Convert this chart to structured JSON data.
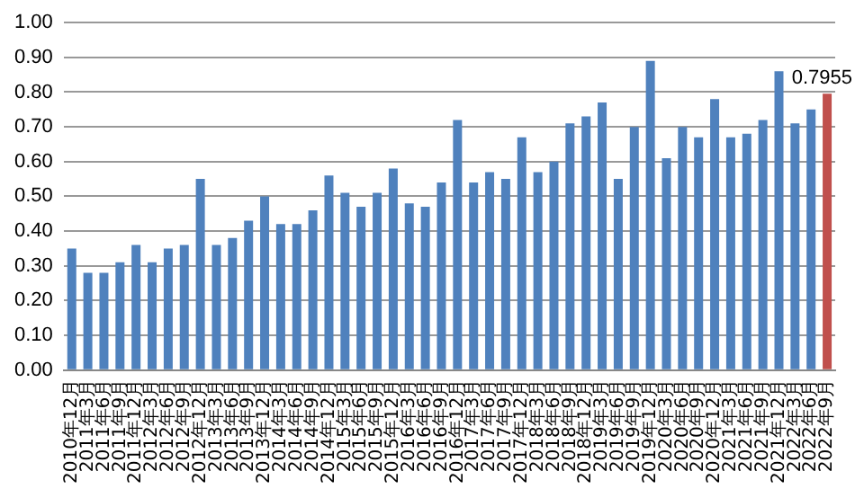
{
  "chart_data": {
    "type": "bar",
    "categories": [
      "2010年12月",
      "2011年3月",
      "2011年6月",
      "2011年9月",
      "2011年12月",
      "2012年3月",
      "2012年6月",
      "2012年9月",
      "2012年12月",
      "2013年3月",
      "2013年6月",
      "2013年9月",
      "2013年12月",
      "2014年3月",
      "2014年6月",
      "2014年9月",
      "2014年12月",
      "2015年3月",
      "2015年6月",
      "2015年9月",
      "2015年12月",
      "2016年3月",
      "2016年6月",
      "2016年9月",
      "2016年12月",
      "2017年3月",
      "2017年6月",
      "2017年9月",
      "2017年12月",
      "2018年3月",
      "2018年6月",
      "2018年9月",
      "2018年12月",
      "2019年3月",
      "2019年6月",
      "2019年9月",
      "2019年12月",
      "2020年3月",
      "2020年6月",
      "2020年9月",
      "2020年12月",
      "2021年3月",
      "2021年6月",
      "2021年9月",
      "2021年12月",
      "2022年3月",
      "2022年6月",
      "2022年9月"
    ],
    "values": [
      0.35,
      0.28,
      0.28,
      0.31,
      0.36,
      0.31,
      0.35,
      0.36,
      0.55,
      0.36,
      0.38,
      0.43,
      0.5,
      0.42,
      0.42,
      0.46,
      0.56,
      0.51,
      0.47,
      0.51,
      0.58,
      0.48,
      0.47,
      0.54,
      0.72,
      0.54,
      0.57,
      0.55,
      0.67,
      0.57,
      0.6,
      0.71,
      0.73,
      0.77,
      0.55,
      0.7,
      0.89,
      0.61,
      0.7,
      0.67,
      0.78,
      0.67,
      0.68,
      0.72,
      0.86,
      0.71,
      0.75,
      0.7955
    ],
    "colors": [
      "#4f81bd",
      "#4f81bd",
      "#4f81bd",
      "#4f81bd",
      "#4f81bd",
      "#4f81bd",
      "#4f81bd",
      "#4f81bd",
      "#4f81bd",
      "#4f81bd",
      "#4f81bd",
      "#4f81bd",
      "#4f81bd",
      "#4f81bd",
      "#4f81bd",
      "#4f81bd",
      "#4f81bd",
      "#4f81bd",
      "#4f81bd",
      "#4f81bd",
      "#4f81bd",
      "#4f81bd",
      "#4f81bd",
      "#4f81bd",
      "#4f81bd",
      "#4f81bd",
      "#4f81bd",
      "#4f81bd",
      "#4f81bd",
      "#4f81bd",
      "#4f81bd",
      "#4f81bd",
      "#4f81bd",
      "#4f81bd",
      "#4f81bd",
      "#4f81bd",
      "#4f81bd",
      "#4f81bd",
      "#4f81bd",
      "#4f81bd",
      "#4f81bd",
      "#4f81bd",
      "#4f81bd",
      "#4f81bd",
      "#4f81bd",
      "#4f81bd",
      "#4f81bd",
      "#c0504d"
    ],
    "value_labels": [
      null,
      null,
      null,
      null,
      null,
      null,
      null,
      null,
      null,
      null,
      null,
      null,
      null,
      null,
      null,
      null,
      null,
      null,
      null,
      null,
      null,
      null,
      null,
      null,
      null,
      null,
      null,
      null,
      null,
      null,
      null,
      null,
      null,
      null,
      null,
      null,
      null,
      null,
      null,
      null,
      null,
      null,
      null,
      null,
      null,
      null,
      null,
      "0.7955"
    ],
    "ylim": [
      0,
      1
    ],
    "yticks": [
      {
        "value": 0,
        "label": "0.00"
      },
      {
        "value": 0.1,
        "label": "0.10"
      },
      {
        "value": 0.2,
        "label": "0.20"
      },
      {
        "value": 0.3,
        "label": "0.30"
      },
      {
        "value": 0.4,
        "label": "0.40"
      },
      {
        "value": 0.5,
        "label": "0.50"
      },
      {
        "value": 0.6,
        "label": "0.60"
      },
      {
        "value": 0.7,
        "label": "0.70"
      },
      {
        "value": 0.8,
        "label": "0.80"
      },
      {
        "value": 0.9,
        "label": "0.90"
      },
      {
        "value": 1,
        "label": "1.00"
      }
    ],
    "grid": "y",
    "legend": false
  }
}
